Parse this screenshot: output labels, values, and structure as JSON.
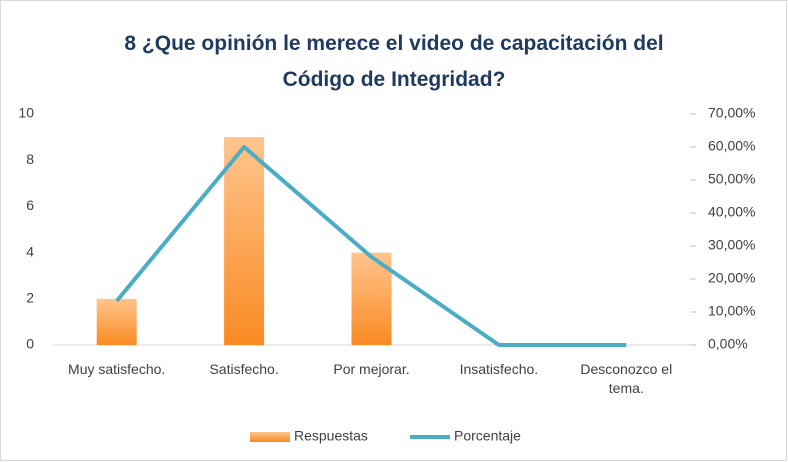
{
  "chart_data": {
    "type": "bar",
    "title": "8 ¿Que opinión le merece el video de capacitación del Código de Integridad?",
    "categories": [
      "Muy satisfecho.",
      "Satisfecho.",
      "Por mejorar.",
      "Insatisfecho.",
      "Desconozco el tema."
    ],
    "series": [
      {
        "name": "Respuestas",
        "color": "#f79646",
        "values": [
          2,
          9,
          4,
          0,
          0
        ]
      },
      {
        "name": "Porcentaje",
        "color": "#4bacc6",
        "values": [
          13.33,
          60,
          26.67,
          0,
          0
        ],
        "axis": "y2",
        "type": "line"
      }
    ],
    "ylim": [
      0,
      10
    ],
    "yticks": [
      0,
      2,
      4,
      6,
      8,
      10
    ],
    "y2lim": [
      0,
      70
    ],
    "y2ticks": [
      {
        "value": 0,
        "label": "0,00%"
      },
      {
        "value": 10,
        "label": "10,00%"
      },
      {
        "value": 20,
        "label": "20,00%"
      },
      {
        "value": 30,
        "label": "30,00%"
      },
      {
        "value": 40,
        "label": "40,00%"
      },
      {
        "value": 50,
        "label": "50,00%"
      },
      {
        "value": 60,
        "label": "60,00%"
      },
      {
        "value": 70,
        "label": "70,00%"
      }
    ],
    "legend": "bottom"
  }
}
